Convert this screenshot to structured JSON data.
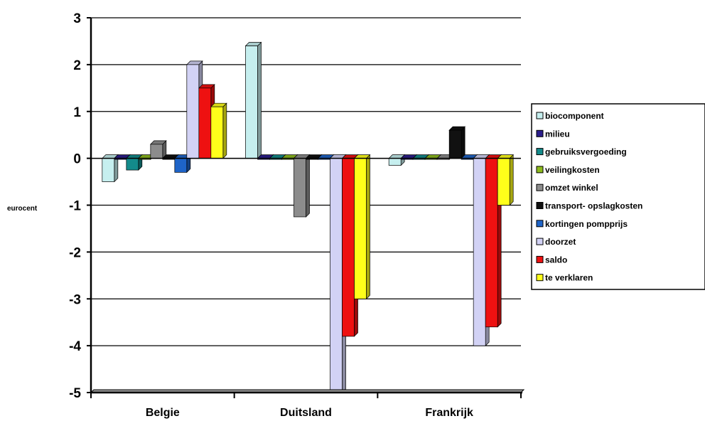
{
  "chart_data": {
    "type": "bar",
    "ylabel": "eurocent",
    "ylim": [
      -5,
      3
    ],
    "yticks": [
      3,
      2,
      1,
      0,
      -1,
      -2,
      -3,
      -4,
      -5
    ],
    "grid": true,
    "legend_position": "right",
    "categories": [
      "Belgie",
      "Duitsland",
      "Frankrijk"
    ],
    "series": [
      {
        "name": "biocomponent",
        "color": "#c6efef",
        "values": [
          -0.5,
          2.4,
          -0.15
        ]
      },
      {
        "name": "milieu",
        "color": "#2b1e8c",
        "values": [
          0,
          0,
          0
        ]
      },
      {
        "name": "gebruiksvergoeding",
        "color": "#138b8b",
        "values": [
          -0.25,
          0,
          0
        ]
      },
      {
        "name": "veilingkosten",
        "color": "#8dbb1e",
        "values": [
          0,
          0,
          0
        ]
      },
      {
        "name": "omzet winkel",
        "color": "#8c8c8c",
        "values": [
          0.3,
          -1.25,
          0
        ]
      },
      {
        "name": "transport- opslagkosten",
        "color": "#111111",
        "values": [
          0,
          0,
          0.6
        ]
      },
      {
        "name": "kortingen pompprijs",
        "color": "#1e64c8",
        "values": [
          -0.3,
          0,
          0
        ]
      },
      {
        "name": "doorzet",
        "color": "#d2d2f5",
        "values": [
          2.0,
          -5.0,
          -4.0
        ]
      },
      {
        "name": "saldo",
        "color": "#ee1111",
        "values": [
          1.5,
          -3.8,
          -3.6
        ]
      },
      {
        "name": "te verklaren",
        "color": "#ffff1a",
        "values": [
          1.1,
          -3.0,
          -1.0
        ]
      }
    ]
  }
}
